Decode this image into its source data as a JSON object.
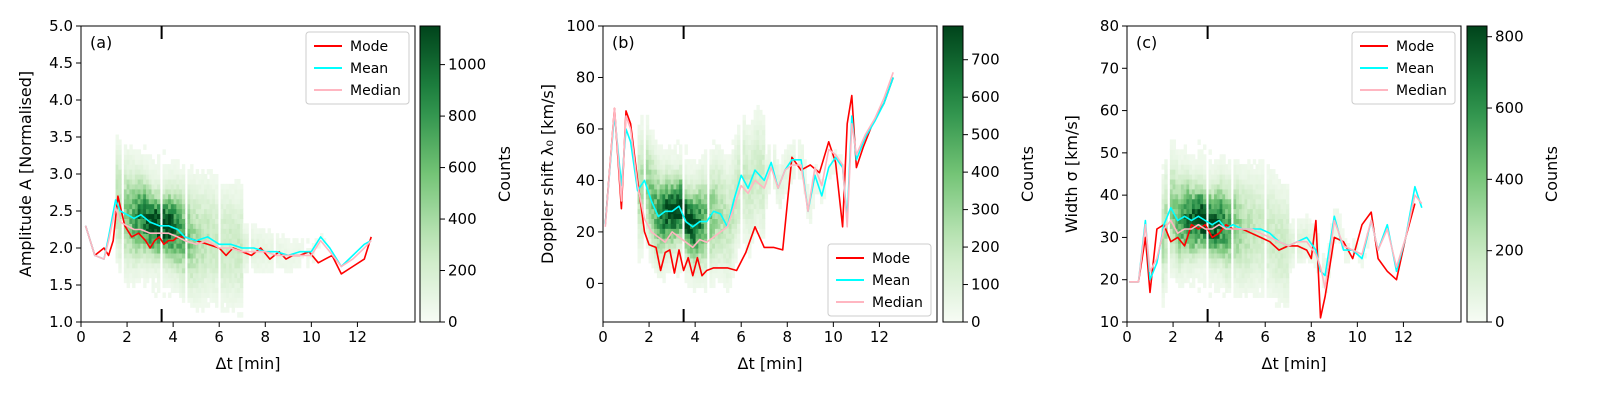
{
  "chart_data": [
    {
      "type": "line",
      "panel_label": "(a)",
      "xlabel": "Δt [min]",
      "ylabel": "Amplitude A [Normalised]",
      "xlim": [
        0,
        14.5
      ],
      "ylim": [
        1.0,
        5.0
      ],
      "xticks": [
        0,
        2,
        4,
        6,
        8,
        10,
        12
      ],
      "yticks": [
        1.0,
        1.5,
        2.0,
        2.5,
        3.0,
        3.5,
        4.0,
        4.5,
        5.0
      ],
      "ytick_labels": [
        "1.0",
        "1.5",
        "2.0",
        "2.5",
        "3.0",
        "3.5",
        "4.0",
        "4.5",
        "5.0"
      ],
      "marker_x": 3.5,
      "legend": [
        "Mode",
        "Mean",
        "Median"
      ],
      "legend_location": "top-right",
      "colorbar": {
        "label": "Counts",
        "max": 1150,
        "ticks": [
          0,
          200,
          400,
          600,
          800,
          1000
        ]
      },
      "colors": {
        "Mode": "#ff0000",
        "Mean": "#00ffff",
        "Median": "#ffb6c1"
      },
      "series": [
        {
          "name": "Mode",
          "x": [
            0.2,
            0.6,
            1.0,
            1.2,
            1.4,
            1.6,
            1.9,
            2.2,
            2.5,
            2.8,
            3.0,
            3.2,
            3.4,
            3.6,
            3.8,
            4.0,
            4.2,
            4.5,
            5.0,
            5.5,
            6.0,
            6.3,
            6.6,
            7.0,
            7.4,
            7.8,
            8.2,
            8.6,
            8.9,
            9.2,
            9.5,
            9.9,
            10.3,
            10.6,
            10.9,
            11.3,
            11.8,
            12.3,
            12.6
          ],
          "y": [
            2.3,
            1.9,
            2.0,
            1.9,
            2.1,
            2.7,
            2.3,
            2.15,
            2.2,
            2.1,
            2.0,
            2.1,
            2.15,
            2.05,
            2.1,
            2.1,
            2.15,
            2.15,
            2.1,
            2.05,
            2.0,
            1.9,
            2.0,
            1.95,
            1.9,
            2.0,
            1.85,
            1.95,
            1.85,
            1.9,
            1.9,
            1.95,
            1.8,
            1.85,
            1.9,
            1.65,
            1.75,
            1.85,
            2.15
          ]
        },
        {
          "name": "Mean",
          "x": [
            0.2,
            0.6,
            1.0,
            1.2,
            1.5,
            1.7,
            2.0,
            2.3,
            2.6,
            3.0,
            3.4,
            3.8,
            4.2,
            4.5,
            5.0,
            5.5,
            6.0,
            6.5,
            7.0,
            7.5,
            8.0,
            8.5,
            9.0,
            9.5,
            10.0,
            10.4,
            10.8,
            11.3,
            11.8,
            12.3,
            12.6
          ],
          "y": [
            2.3,
            1.9,
            1.85,
            2.15,
            2.65,
            2.5,
            2.45,
            2.4,
            2.45,
            2.35,
            2.3,
            2.3,
            2.25,
            2.15,
            2.1,
            2.15,
            2.05,
            2.05,
            2.0,
            2.0,
            1.95,
            1.95,
            1.9,
            1.95,
            1.95,
            2.15,
            2.0,
            1.75,
            1.9,
            2.05,
            2.1
          ]
        },
        {
          "name": "Median",
          "x": [
            0.2,
            0.6,
            1.0,
            1.2,
            1.5,
            1.7,
            2.0,
            2.3,
            2.6,
            3.0,
            3.4,
            3.8,
            4.2,
            4.5,
            5.0,
            5.5,
            6.0,
            6.5,
            7.0,
            7.5,
            8.0,
            8.5,
            9.0,
            9.5,
            10.0,
            10.4,
            10.8,
            11.3,
            11.8,
            12.3,
            12.6
          ],
          "y": [
            2.3,
            1.9,
            1.85,
            2.1,
            2.55,
            2.35,
            2.3,
            2.25,
            2.25,
            2.2,
            2.2,
            2.2,
            2.15,
            2.1,
            2.05,
            2.1,
            2.0,
            2.0,
            1.95,
            1.95,
            1.95,
            1.9,
            1.9,
            1.9,
            1.9,
            2.1,
            1.95,
            1.75,
            1.85,
            2.0,
            2.1
          ]
        }
      ]
    },
    {
      "type": "line",
      "panel_label": "(b)",
      "xlabel": "Δt [min]",
      "ylabel": "Doppler shift λ₀ [km/s]",
      "xlim": [
        0,
        14.5
      ],
      "ylim": [
        -15,
        100
      ],
      "xticks": [
        0,
        2,
        4,
        6,
        8,
        10,
        12
      ],
      "yticks": [
        0,
        20,
        40,
        60,
        80,
        100
      ],
      "ytick_labels": [
        "0",
        "20",
        "40",
        "60",
        "80",
        "100"
      ],
      "marker_x": 3.5,
      "legend": [
        "Mode",
        "Mean",
        "Median"
      ],
      "legend_location": "bottom-right",
      "colorbar": {
        "label": "Counts",
        "max": 790,
        "ticks": [
          0,
          100,
          200,
          300,
          400,
          500,
          600,
          700
        ]
      },
      "colors": {
        "Mode": "#ff0000",
        "Mean": "#00ffff",
        "Median": "#ffb6c1"
      },
      "series": [
        {
          "name": "Mode",
          "x": [
            0.1,
            0.5,
            0.8,
            1.0,
            1.2,
            1.5,
            1.8,
            2.0,
            2.3,
            2.5,
            2.7,
            2.9,
            3.1,
            3.3,
            3.5,
            3.7,
            3.9,
            4.1,
            4.3,
            4.5,
            4.8,
            5.1,
            5.4,
            5.8,
            6.2,
            6.6,
            7.0,
            7.4,
            7.8,
            8.2,
            8.6,
            9.0,
            9.4,
            9.8,
            10.1,
            10.4,
            10.6,
            10.8,
            11.0,
            11.3,
            11.7,
            12.2,
            12.6
          ],
          "y": [
            23,
            68,
            29,
            67,
            62,
            40,
            20,
            15,
            14,
            5,
            12,
            13,
            4,
            13,
            5,
            10,
            3,
            10,
            3,
            5,
            6,
            6,
            6,
            5,
            12,
            22,
            14,
            14,
            13,
            49,
            44,
            46,
            43,
            55,
            47,
            22,
            62,
            73,
            45,
            53,
            62,
            70,
            80
          ]
        },
        {
          "name": "Mean",
          "x": [
            0.1,
            0.5,
            0.8,
            1.0,
            1.2,
            1.5,
            1.8,
            2.1,
            2.4,
            2.7,
            3.0,
            3.3,
            3.6,
            3.9,
            4.2,
            4.5,
            4.8,
            5.1,
            5.4,
            5.7,
            6.0,
            6.3,
            6.6,
            7.0,
            7.3,
            7.6,
            7.9,
            8.2,
            8.6,
            8.9,
            9.2,
            9.5,
            9.8,
            10.1,
            10.4,
            10.6,
            10.8,
            11.0,
            11.4,
            11.8,
            12.2,
            12.6
          ],
          "y": [
            23,
            66,
            38,
            60,
            55,
            36,
            40,
            32,
            26,
            28,
            28,
            30,
            24,
            22,
            24,
            24,
            28,
            27,
            22,
            33,
            42,
            37,
            44,
            40,
            47,
            37,
            44,
            48,
            48,
            28,
            42,
            34,
            45,
            49,
            45,
            25,
            65,
            48,
            57,
            63,
            70,
            80
          ]
        },
        {
          "name": "Median",
          "x": [
            0.1,
            0.5,
            0.8,
            1.0,
            1.2,
            1.5,
            1.8,
            2.1,
            2.4,
            2.7,
            3.0,
            3.3,
            3.6,
            3.9,
            4.2,
            4.5,
            4.8,
            5.1,
            5.4,
            5.7,
            6.0,
            6.3,
            6.6,
            7.0,
            7.3,
            7.6,
            7.9,
            8.2,
            8.6,
            8.9,
            9.2,
            9.5,
            9.8,
            10.1,
            10.4,
            10.6,
            10.8,
            11.0,
            11.4,
            11.8,
            12.2,
            12.6
          ],
          "y": [
            22,
            68,
            32,
            65,
            60,
            38,
            25,
            20,
            18,
            16,
            20,
            18,
            16,
            14,
            17,
            16,
            18,
            20,
            22,
            30,
            38,
            35,
            40,
            37,
            45,
            37,
            44,
            46,
            46,
            28,
            45,
            38,
            52,
            50,
            46,
            22,
            62,
            50,
            58,
            64,
            72,
            82
          ]
        }
      ]
    },
    {
      "type": "line",
      "panel_label": "(c)",
      "xlabel": "Δt [min]",
      "ylabel": "Width σ [km/s]",
      "xlim": [
        0,
        14.5
      ],
      "ylim": [
        10,
        80
      ],
      "xticks": [
        0,
        2,
        4,
        6,
        8,
        10,
        12
      ],
      "yticks": [
        10,
        20,
        30,
        40,
        50,
        60,
        70,
        80
      ],
      "ytick_labels": [
        "10",
        "20",
        "30",
        "40",
        "50",
        "60",
        "70",
        "80"
      ],
      "marker_x": 3.5,
      "legend": [
        "Mode",
        "Mean",
        "Median"
      ],
      "legend_location": "top-right",
      "colorbar": {
        "label": "Counts",
        "max": 830,
        "ticks": [
          0,
          200,
          400,
          600,
          800
        ]
      },
      "colors": {
        "Mode": "#ff0000",
        "Mean": "#00ffff",
        "Median": "#ffb6c1"
      },
      "series": [
        {
          "name": "Mode",
          "x": [
            0.1,
            0.5,
            0.8,
            1.0,
            1.3,
            1.6,
            1.9,
            2.2,
            2.5,
            2.8,
            3.1,
            3.4,
            3.7,
            4.0,
            4.3,
            4.6,
            5.0,
            5.4,
            5.8,
            6.2,
            6.6,
            7.0,
            7.4,
            7.8,
            8.0,
            8.2,
            8.4,
            8.6,
            9.0,
            9.4,
            9.8,
            10.2,
            10.6,
            10.9,
            11.3,
            11.7,
            12.1,
            12.5
          ],
          "y": [
            19.5,
            19.5,
            30,
            17,
            32,
            33,
            29,
            30,
            28,
            33,
            32,
            33,
            30,
            31,
            33,
            32,
            32,
            31,
            30,
            29,
            27,
            28,
            28,
            27,
            25,
            34,
            11,
            16,
            30,
            29,
            25,
            33,
            36,
            25,
            22,
            20,
            30,
            38
          ]
        },
        {
          "name": "Mean",
          "x": [
            0.1,
            0.5,
            0.8,
            1.0,
            1.3,
            1.6,
            1.9,
            2.2,
            2.5,
            2.8,
            3.1,
            3.4,
            3.7,
            4.0,
            4.3,
            4.6,
            5.0,
            5.4,
            5.8,
            6.2,
            6.6,
            7.0,
            7.4,
            7.8,
            8.2,
            8.4,
            8.6,
            9.0,
            9.4,
            9.8,
            10.2,
            10.6,
            10.9,
            11.3,
            11.7,
            12.1,
            12.5,
            12.8
          ],
          "y": [
            19.5,
            19.5,
            34,
            20,
            24,
            33,
            37,
            34,
            35,
            34,
            35,
            34,
            33,
            34,
            32,
            33,
            32,
            32,
            32,
            31,
            29,
            28,
            29,
            30,
            27,
            22,
            21,
            35,
            27,
            27,
            25,
            34,
            27,
            33,
            22,
            30,
            42,
            37
          ]
        },
        {
          "name": "Median",
          "x": [
            0.1,
            0.5,
            0.8,
            1.0,
            1.3,
            1.6,
            1.9,
            2.2,
            2.5,
            2.8,
            3.1,
            3.4,
            3.7,
            4.0,
            4.3,
            4.6,
            5.0,
            5.4,
            5.8,
            6.2,
            6.6,
            7.0,
            7.4,
            7.8,
            8.2,
            8.4,
            8.6,
            9.0,
            9.4,
            9.8,
            10.2,
            10.6,
            10.9,
            11.3,
            11.7,
            12.1,
            12.5,
            12.8
          ],
          "y": [
            19.5,
            19.5,
            33,
            22,
            25,
            32,
            34,
            31,
            32,
            32,
            33,
            32,
            32,
            33,
            32,
            32,
            32,
            32,
            31,
            30,
            29,
            28,
            29,
            29,
            26,
            23,
            18,
            34,
            28,
            27,
            26,
            34,
            27,
            32,
            23,
            30,
            40,
            38
          ]
        }
      ]
    }
  ]
}
